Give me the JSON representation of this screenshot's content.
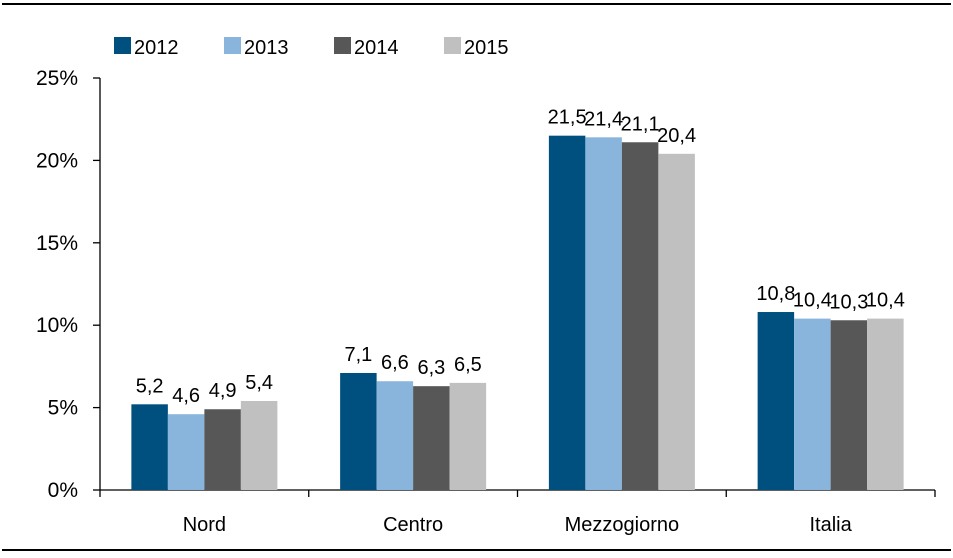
{
  "chart_data": {
    "type": "bar",
    "categories": [
      "Nord",
      "Centro",
      "Mezzogiorno",
      "Italia"
    ],
    "series": [
      {
        "name": "2012",
        "values": [
          5.2,
          7.1,
          21.5,
          10.8
        ],
        "color": "#00507F"
      },
      {
        "name": "2013",
        "values": [
          4.6,
          6.6,
          21.4,
          10.4
        ],
        "color": "#89B5DC"
      },
      {
        "name": "2014",
        "values": [
          4.9,
          6.3,
          21.1,
          10.3
        ],
        "color": "#575757"
      },
      {
        "name": "2015",
        "values": [
          5.4,
          6.5,
          20.4,
          10.4
        ],
        "color": "#C0C0C0"
      }
    ],
    "data_labels": [
      [
        "5,2",
        "7,1",
        "21,5",
        "10,8"
      ],
      [
        "4,6",
        "6,6",
        "21,4",
        "10,4"
      ],
      [
        "4,9",
        "6,3",
        "21,1",
        "10,3"
      ],
      [
        "5,4",
        "6,5",
        "20,4",
        "10,4"
      ]
    ],
    "y_ticks": [
      0,
      5,
      10,
      15,
      20,
      25
    ],
    "y_tick_labels": [
      "0%",
      "5%",
      "10%",
      "15%",
      "20%",
      "25%"
    ],
    "ylim": [
      0,
      25
    ],
    "grid": false,
    "legend_position": "top-left",
    "title": "",
    "xlabel": "",
    "ylabel": ""
  }
}
